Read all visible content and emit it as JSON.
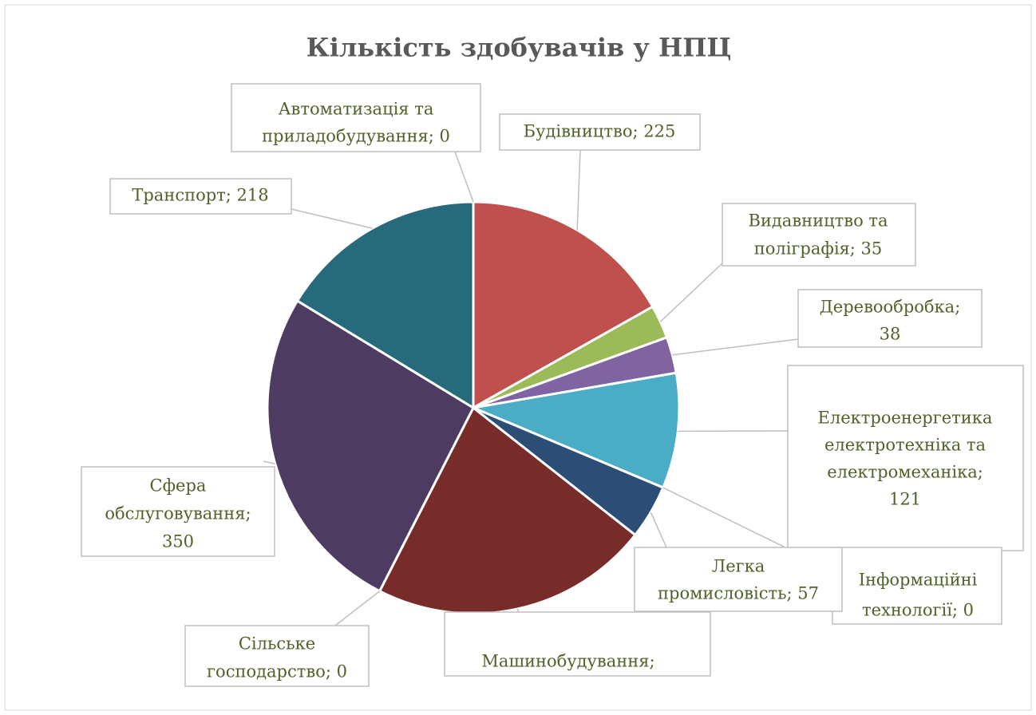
{
  "chart_data": {
    "type": "pie",
    "title": "Кількість здобувачів у НПЦ",
    "values": [
      225,
      35,
      38,
      121,
      0,
      57,
      293,
      0,
      350,
      218,
      0
    ],
    "value_labels": [
      [
        "Будівництво; 225"
      ],
      [
        "Видавництво та",
        "поліграфія; 35"
      ],
      [
        "Деревообробка;",
        "38"
      ],
      [
        "Електроенергетика",
        "електротехніка та",
        "електромеханіка;",
        "121"
      ],
      [
        "Інформаційні",
        "технології; 0"
      ],
      [
        "Легка",
        "промисловість; 57"
      ],
      [
        "Машинобудування;"
      ],
      [
        "Сільське",
        "господарство; 0"
      ],
      [
        "Сфера",
        "обслуговування;",
        "350"
      ],
      [
        "Транспорт; 218"
      ],
      [
        "Автоматизація та",
        "приладобудування; 0"
      ]
    ],
    "colors": [
      "#c0504d",
      "#9bbb59",
      "#8064a2",
      "#4bacc6",
      "#f79646",
      "#2c4d75",
      "#772c2a",
      "#5f7530",
      "#4d3b62",
      "#276a7c",
      "#b65708"
    ]
  }
}
